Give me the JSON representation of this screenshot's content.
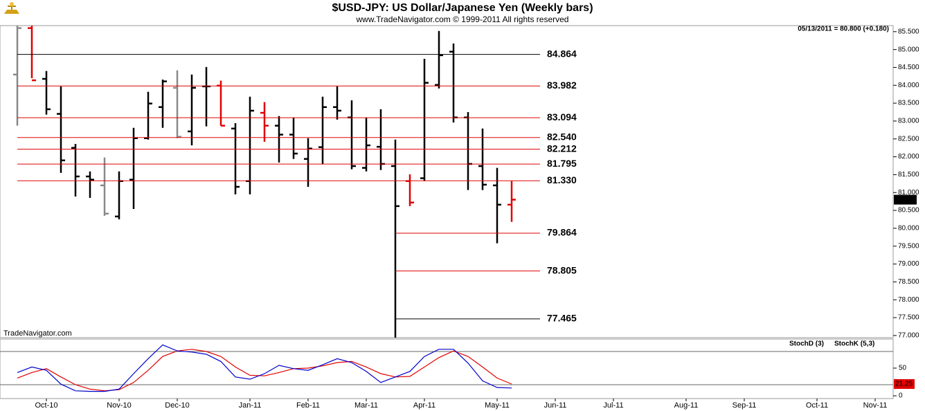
{
  "chart_data": [
    {
      "type": "ohlc",
      "title": "$USD-JPY:  US Dollar/Japanese Yen  (Weekly bars)",
      "subtitle": "www.TradeNavigator.com © 1999-2011 All rights reserved",
      "info": "05/13/2011 = 80.800 (+0.180)",
      "watermark": "TradeNavigator.com",
      "categories": [
        null,
        null,
        "Oct-10",
        null,
        null,
        null,
        null,
        "Nov-10",
        null,
        null,
        null,
        "Dec-10",
        null,
        null,
        null,
        null,
        "Jan-11",
        null,
        null,
        null,
        "Feb-11",
        null,
        null,
        null,
        "Mar-11",
        null,
        null,
        null,
        "Apr-11",
        null,
        null,
        null,
        null,
        "May-11",
        null,
        null,
        null,
        "Jun-11",
        null,
        null,
        null,
        "Jul-11",
        null,
        null,
        null,
        null,
        "Aug-11",
        null,
        null,
        null,
        "Sep-11",
        null,
        null,
        null,
        null,
        "Oct-11",
        null,
        null,
        null,
        "Nov-11",
        null
      ],
      "open": [
        84.3,
        85.6,
        84.18,
        83.2,
        82.25,
        81.45,
        81.2,
        80.33,
        81.36,
        82.52,
        83.39,
        83.93,
        82.71,
        83.97,
        83.99,
        82.79,
        81.32,
        83.23,
        82.87,
        82.62,
        81.94,
        82.27,
        83.39,
        83.1,
        81.69,
        82.28,
        81.74,
        81.32,
        81.4,
        84.01,
        84.94,
        83.1,
        81.74,
        81.2,
        80.66,
        null,
        null,
        null,
        null,
        null,
        null,
        null,
        null,
        null,
        null,
        null,
        null,
        null,
        null,
        null,
        null,
        null,
        null,
        null,
        null,
        null,
        null,
        null,
        null,
        null,
        null
      ],
      "high": [
        85.67,
        85.67,
        84.4,
        83.97,
        82.36,
        81.59,
        81.98,
        81.59,
        82.81,
        83.82,
        84.16,
        84.42,
        84.3,
        84.51,
        84.13,
        82.94,
        83.68,
        83.53,
        83.14,
        83.1,
        82.52,
        83.68,
        83.97,
        83.58,
        83.1,
        83.33,
        82.48,
        81.51,
        84.74,
        85.52,
        85.17,
        83.25,
        82.79,
        81.69,
        81.32,
        null,
        null,
        null,
        null,
        null,
        null,
        null,
        null,
        null,
        null,
        null,
        null,
        null,
        null,
        null,
        null,
        null,
        null,
        null,
        null,
        null,
        null,
        null,
        null,
        null,
        null
      ],
      "low": [
        82.87,
        84.2,
        83.18,
        81.55,
        80.89,
        80.85,
        80.35,
        80.25,
        80.54,
        82.48,
        82.81,
        82.52,
        82.32,
        82.85,
        82.87,
        80.95,
        80.95,
        82.42,
        81.84,
        81.94,
        81.16,
        81.8,
        83.04,
        81.65,
        81.59,
        81.63,
        76.94,
        80.62,
        81.32,
        83.91,
        82.96,
        81.07,
        81.07,
        79.58,
        80.18,
        null,
        null,
        null,
        null,
        null,
        null,
        null,
        null,
        null,
        null,
        null,
        null,
        null,
        null,
        null,
        null,
        null,
        null,
        null,
        null,
        null,
        null,
        null,
        null,
        null,
        null
      ],
      "close": [
        85.6,
        84.14,
        83.33,
        81.9,
        81.45,
        81.36,
        80.41,
        81.32,
        82.52,
        83.49,
        84.11,
        82.56,
        83.93,
        83.97,
        82.87,
        81.16,
        83.29,
        82.87,
        82.62,
        82.09,
        82.23,
        83.39,
        83.29,
        81.74,
        82.32,
        81.8,
        80.62,
        80.72,
        84.07,
        84.84,
        83.1,
        81.8,
        81.22,
        80.66,
        80.8,
        null,
        null,
        null,
        null,
        null,
        null,
        null,
        null,
        null,
        null,
        null,
        null,
        null,
        null,
        null,
        null,
        null,
        null,
        null,
        null,
        null,
        null,
        null,
        null,
        null,
        null
      ],
      "bar_colors": [
        "#888888",
        "#e00000",
        "#000000",
        "#000000",
        "#000000",
        "#000000",
        "#888888",
        "#000000",
        "#000000",
        "#000000",
        "#000000",
        "#888888",
        "#000000",
        "#000000",
        "#e00000",
        "#000000",
        "#000000",
        "#e00000",
        "#000000",
        "#000000",
        "#000000",
        "#000000",
        "#000000",
        "#000000",
        "#000000",
        "#000000",
        "#000000",
        "#e00000",
        "#000000",
        "#000000",
        "#000000",
        "#000000",
        "#000000",
        "#000000",
        "#e00000",
        null,
        null,
        null,
        null,
        null,
        null,
        null,
        null,
        null,
        null,
        null,
        null,
        null,
        null,
        null,
        null,
        null,
        null,
        null,
        null,
        null,
        null,
        null,
        null,
        null,
        null
      ],
      "ylim": [
        76.94,
        85.67
      ],
      "yticks": [
        {
          "value": 77.0,
          "label": "77.000"
        },
        {
          "value": 77.5,
          "label": "77.500"
        },
        {
          "value": 78.0,
          "label": "78.000"
        },
        {
          "value": 78.5,
          "label": "78.500"
        },
        {
          "value": 79.0,
          "label": "79.000"
        },
        {
          "value": 79.5,
          "label": "79.500"
        },
        {
          "value": 80.0,
          "label": "80.000"
        },
        {
          "value": 80.5,
          "label": "80.500"
        },
        {
          "value": 81.0,
          "label": "81.000"
        },
        {
          "value": 81.5,
          "label": "81.500"
        },
        {
          "value": 82.0,
          "label": "82.000"
        },
        {
          "value": 82.5,
          "label": "82.500"
        },
        {
          "value": 83.0,
          "label": "83.000"
        },
        {
          "value": 83.5,
          "label": "83.500"
        },
        {
          "value": 84.0,
          "label": "84.000"
        },
        {
          "value": 84.5,
          "label": "84.500"
        },
        {
          "value": 85.0,
          "label": "85.000"
        },
        {
          "value": 85.5,
          "label": "85.500"
        }
      ],
      "levels": [
        {
          "value": 84.864,
          "color": "#000000"
        },
        {
          "value": 83.982,
          "color": "#e00000"
        },
        {
          "value": 83.094,
          "color": "#e00000"
        },
        {
          "value": 82.54,
          "label": "82.540",
          "color": "#e00000"
        },
        {
          "value": 82.212,
          "color": "#e00000"
        },
        {
          "value": 81.795,
          "color": "#e00000"
        },
        {
          "value": 81.33,
          "label": "81.330",
          "color": "#e00000"
        },
        {
          "value": 79.864,
          "color": "#e00000"
        },
        {
          "value": 78.805,
          "color": "#e00000"
        },
        {
          "value": 77.465,
          "color": "#000000"
        }
      ],
      "last_label": {
        "value": 80.8,
        "label": "80.800"
      }
    },
    {
      "type": "line",
      "series": [
        {
          "name": "StochD (3)",
          "color": "#e00000",
          "values": [
            32,
            42,
            49,
            34,
            20,
            12,
            9,
            11,
            24,
            46,
            71,
            81,
            84,
            80,
            71,
            52,
            37,
            36,
            42,
            49,
            50,
            54,
            60,
            62,
            52,
            40,
            34,
            35,
            52,
            69,
            81,
            71,
            52,
            32,
            21.25,
            null,
            null,
            null,
            null,
            null,
            null,
            null,
            null,
            null,
            null,
            null,
            null,
            null,
            null,
            null,
            null,
            null,
            null,
            null,
            null,
            null,
            null,
            null,
            null,
            null,
            null
          ]
        },
        {
          "name": "StochK (5,3)",
          "color": "#0000cc",
          "values": [
            42,
            52,
            46,
            21,
            9,
            8,
            8,
            12,
            40,
            67,
            92,
            81,
            79,
            75,
            62,
            34,
            30,
            40,
            55,
            49,
            46,
            56,
            67,
            60,
            44,
            24,
            34,
            44,
            71,
            84,
            84,
            59,
            27,
            15,
            14,
            null,
            null,
            null,
            null,
            null,
            null,
            null,
            null,
            null,
            null,
            null,
            null,
            null,
            null,
            null,
            null,
            null,
            null,
            null,
            null,
            null,
            null,
            null,
            null,
            null,
            null
          ]
        }
      ],
      "ylim": [
        0,
        100
      ],
      "yticks": [
        0,
        50
      ],
      "ref_lines": [
        20,
        80
      ]
    }
  ]
}
